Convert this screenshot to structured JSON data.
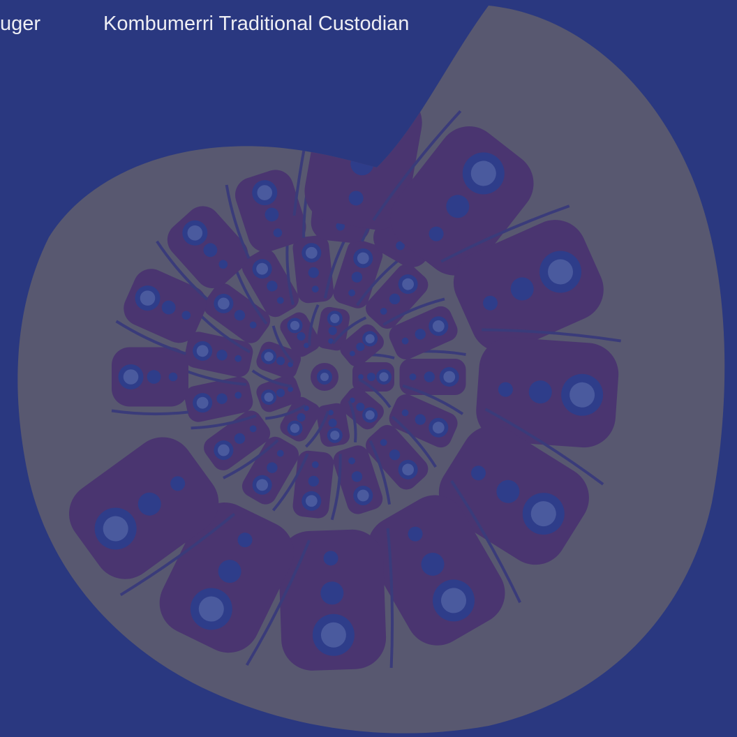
{
  "header": {
    "left_fragment": "uger",
    "caption": "Kombumerri Traditional Custodian"
  }
}
